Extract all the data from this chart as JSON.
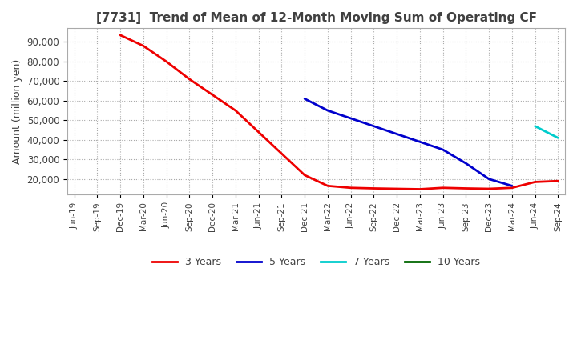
{
  "title": "[7731]  Trend of Mean of 12-Month Moving Sum of Operating CF",
  "ylabel": "Amount (million yen)",
  "ylim": [
    12000,
    97000
  ],
  "yticks": [
    20000,
    30000,
    40000,
    50000,
    60000,
    70000,
    80000,
    90000
  ],
  "background_color": "#ffffff",
  "grid_color": "#aaaaaa",
  "title_color": "#404040",
  "series": {
    "3years": {
      "color": "#ee0000",
      "label": "3 Years",
      "x": [
        "Dec-19",
        "Mar-20",
        "Jun-20",
        "Sep-20",
        "Dec-20",
        "Mar-21",
        "Jun-21",
        "Sep-21",
        "Dec-21",
        "Mar-22",
        "Jun-22",
        "Sep-22",
        "Dec-22",
        "Mar-23",
        "Jun-23",
        "Sep-23",
        "Dec-23",
        "Mar-24",
        "Jun-24",
        "Sep-24"
      ],
      "y": [
        93500,
        88000,
        80000,
        71000,
        63000,
        55000,
        44000,
        33000,
        22000,
        16500,
        15500,
        15200,
        15000,
        14800,
        15500,
        15200,
        15000,
        15500,
        18500,
        19000
      ]
    },
    "5years": {
      "color": "#0000cc",
      "label": "5 Years",
      "x": [
        "Dec-21",
        "Mar-22",
        "Jun-22",
        "Sep-22",
        "Dec-22",
        "Mar-23",
        "Jun-23",
        "Sep-23",
        "Dec-23",
        "Mar-24"
      ],
      "y": [
        61000,
        55000,
        51000,
        47000,
        43000,
        39000,
        35000,
        28000,
        20000,
        16500
      ]
    },
    "7years": {
      "color": "#00cccc",
      "label": "7 Years",
      "x": [
        "Jun-24",
        "Sep-24"
      ],
      "y": [
        47000,
        41000
      ]
    },
    "10years": {
      "color": "#006600",
      "label": "10 Years",
      "x": [],
      "y": []
    }
  },
  "xtick_labels": [
    "Jun-19",
    "Sep-19",
    "Dec-19",
    "Mar-20",
    "Jun-20",
    "Sep-20",
    "Dec-20",
    "Mar-21",
    "Jun-21",
    "Sep-21",
    "Dec-21",
    "Mar-22",
    "Jun-22",
    "Sep-22",
    "Dec-22",
    "Mar-23",
    "Jun-23",
    "Sep-23",
    "Dec-23",
    "Mar-24",
    "Jun-24",
    "Sep-24"
  ],
  "figsize": [
    7.2,
    4.4
  ],
  "dpi": 100
}
